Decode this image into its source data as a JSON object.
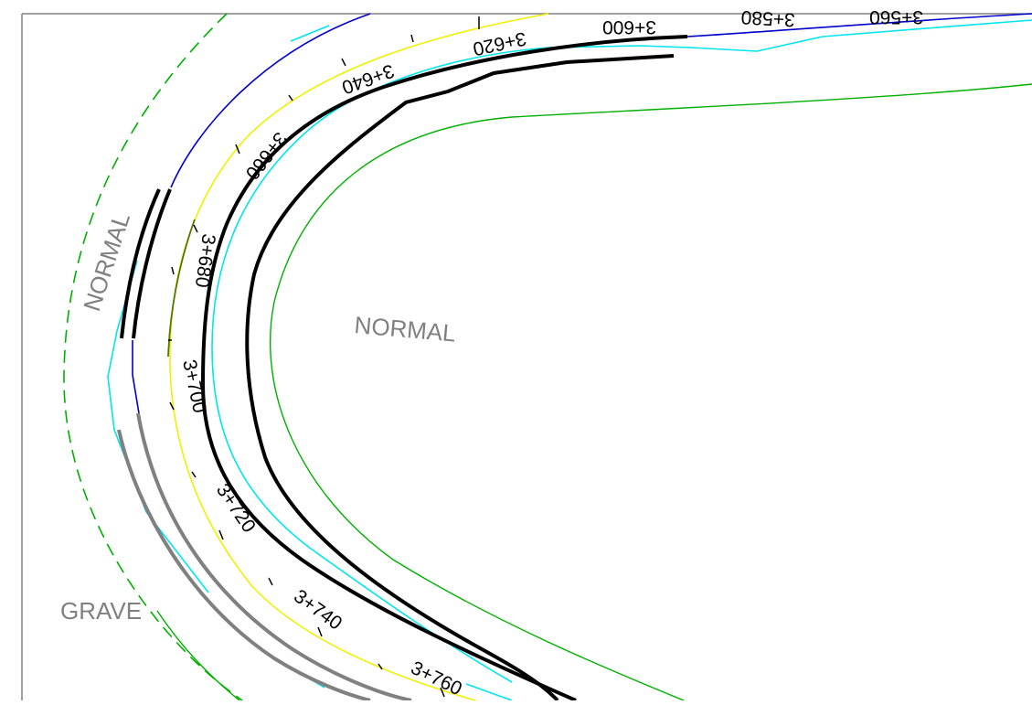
{
  "drawing": {
    "zone_labels": {
      "left": "NORMAL",
      "center": "NORMAL",
      "bottom": "GRAVE"
    },
    "stations": [
      {
        "id": "s560",
        "label": "3+560"
      },
      {
        "id": "s580",
        "label": "3+580"
      },
      {
        "id": "s600",
        "label": "3+600"
      },
      {
        "id": "s620",
        "label": "3+620"
      },
      {
        "id": "s640",
        "label": "3+640"
      },
      {
        "id": "s660",
        "label": "3+660"
      },
      {
        "id": "s680",
        "label": "3+680"
      },
      {
        "id": "s700",
        "label": "3+700"
      },
      {
        "id": "s720",
        "label": "3+720"
      },
      {
        "id": "s740",
        "label": "3+740"
      },
      {
        "id": "s760",
        "label": "3+760"
      }
    ],
    "colors": {
      "frame": "#808080",
      "edge_green": "#00b000",
      "cyan": "#00e5ee",
      "blue": "#0000cc",
      "yellow": "#f0f000",
      "road_black": "#000000",
      "grey_barrier": "#808080",
      "olive": "#557700"
    }
  }
}
